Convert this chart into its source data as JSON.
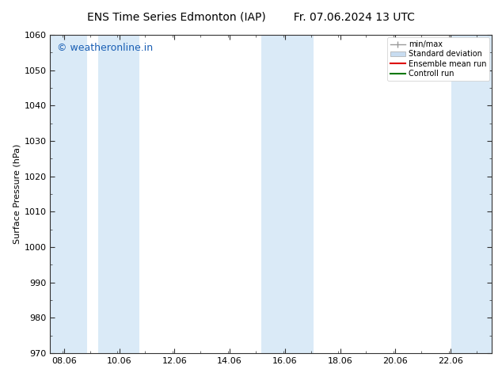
{
  "title_left": "ENS Time Series Edmonton (IAP)",
  "title_right": "Fr. 07.06.2024 13 UTC",
  "ylabel": "Surface Pressure (hPa)",
  "ylim": [
    970,
    1060
  ],
  "yticks": [
    970,
    980,
    990,
    1000,
    1010,
    1020,
    1030,
    1040,
    1050,
    1060
  ],
  "xticks": [
    8.06,
    10.06,
    12.06,
    14.06,
    16.06,
    18.06,
    20.06,
    22.06
  ],
  "xlabel_labels": [
    "08.06",
    "10.06",
    "12.06",
    "14.06",
    "16.06",
    "18.06",
    "20.06",
    "22.06"
  ],
  "xlim": [
    7.56,
    23.56
  ],
  "bg_color": "#ffffff",
  "plot_bg_color": "#ffffff",
  "shaded_bands": [
    {
      "x_start": 7.56,
      "x_end": 8.9,
      "color": "#daeaf7"
    },
    {
      "x_start": 9.3,
      "x_end": 10.8,
      "color": "#daeaf7"
    },
    {
      "x_start": 15.2,
      "x_end": 16.0,
      "color": "#daeaf7"
    },
    {
      "x_start": 16.0,
      "x_end": 17.1,
      "color": "#daeaf7"
    },
    {
      "x_start": 22.1,
      "x_end": 23.56,
      "color": "#daeaf7"
    }
  ],
  "watermark_text": "© weatheronline.in",
  "watermark_color": "#1a5fb4",
  "legend_entries": [
    {
      "label": "min/max",
      "type": "minmax",
      "color": "#999999"
    },
    {
      "label": "Standard deviation",
      "type": "patch",
      "color": "#c8dcf0"
    },
    {
      "label": "Ensemble mean run",
      "type": "line",
      "color": "#dd0000"
    },
    {
      "label": "Controll run",
      "type": "line",
      "color": "#007700"
    }
  ],
  "tick_color": "#333333",
  "spine_color": "#333333",
  "font_size_title": 10,
  "font_size_axis": 8,
  "font_size_legend": 7,
  "font_size_watermark": 9
}
